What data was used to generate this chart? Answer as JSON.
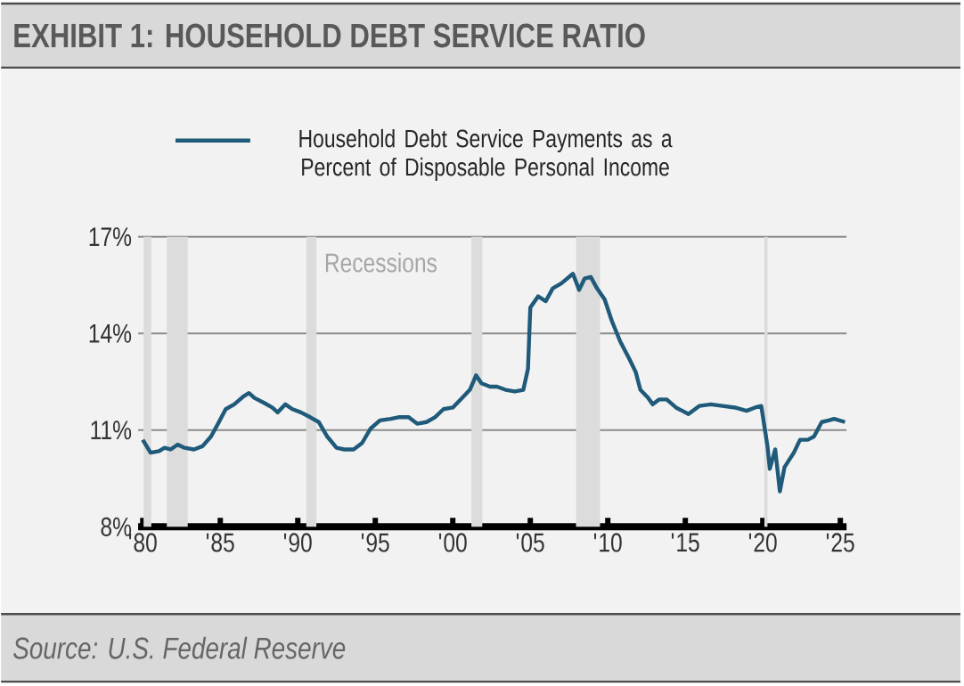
{
  "chart_data": {
    "type": "line",
    "title": "EXHIBIT 1: HOUSEHOLD DEBT SERVICE RATIO",
    "annotations": [
      "Recessions",
      "Source: U.S. Federal Reserve"
    ],
    "series": [
      {
        "name": "Household Debt Service Payments as a Percent of Disposable Personal Income",
        "color": "#1f5a7a",
        "x": [
          1980.0,
          1980.5,
          1981.05,
          1981.4,
          1981.8,
          1982.25,
          1982.7,
          1983.3,
          1983.85,
          1984.4,
          1984.8,
          1985.35,
          1985.9,
          1986.5,
          1986.85,
          1987.2,
          1987.8,
          1988.35,
          1988.7,
          1989.2,
          1989.65,
          1990.2,
          1990.8,
          1991.35,
          1991.9,
          1992.5,
          1993.0,
          1993.6,
          1994.15,
          1994.7,
          1995.3,
          1996.0,
          1996.5,
          1997.15,
          1997.7,
          1998.3,
          1998.85,
          1999.4,
          2000.0,
          2000.5,
          2001.1,
          2001.5,
          2001.85,
          2002.4,
          2002.85,
          2003.4,
          2004.0,
          2004.55,
          2004.85,
          2005.0,
          2005.5,
          2006.0,
          2006.45,
          2007.0,
          2007.75,
          2008.15,
          2008.5,
          2008.9,
          2009.3,
          2009.8,
          2010.25,
          2010.8,
          2011.4,
          2011.8,
          2012.1,
          2012.6,
          2012.9,
          2013.3,
          2013.8,
          2014.4,
          2015.2,
          2015.9,
          2016.65,
          2017.4,
          2018.2,
          2018.95,
          2019.5,
          2019.9,
          2020.3,
          2020.45,
          2020.8,
          2021.1,
          2021.4,
          2022.0,
          2022.4,
          2022.9,
          2023.3,
          2023.8,
          2024.25,
          2024.6,
          2025.3
        ],
        "values": [
          10.7,
          10.3,
          10.35,
          10.45,
          10.4,
          10.55,
          10.45,
          10.4,
          10.5,
          10.8,
          11.15,
          11.65,
          11.8,
          12.05,
          12.15,
          12.0,
          11.85,
          11.7,
          11.55,
          11.8,
          11.65,
          11.55,
          11.4,
          11.25,
          10.8,
          10.45,
          10.4,
          10.4,
          10.6,
          11.05,
          11.3,
          11.35,
          11.4,
          11.4,
          11.2,
          11.25,
          11.4,
          11.65,
          11.7,
          11.95,
          12.25,
          12.7,
          12.45,
          12.35,
          12.35,
          12.25,
          12.2,
          12.25,
          12.9,
          14.8,
          15.15,
          15.0,
          15.4,
          15.55,
          15.85,
          15.35,
          15.7,
          15.75,
          15.4,
          15.05,
          14.4,
          13.75,
          13.2,
          12.8,
          12.25,
          12.0,
          11.8,
          11.95,
          11.95,
          11.7,
          11.5,
          11.75,
          11.8,
          11.75,
          11.7,
          11.6,
          11.7,
          11.75,
          10.5,
          9.8,
          10.4,
          9.1,
          9.85,
          10.3,
          10.7,
          10.7,
          10.8,
          11.25,
          11.3,
          11.35,
          11.25
        ]
      }
    ],
    "bands": [
      {
        "axis": "x",
        "from": 1980.05,
        "to": 1980.55,
        "color": "#dcdcdc"
      },
      {
        "axis": "x",
        "from": 1981.55,
        "to": 1982.9,
        "color": "#dcdcdc"
      },
      {
        "axis": "x",
        "from": 1990.55,
        "to": 1991.2,
        "color": "#dcdcdc"
      },
      {
        "axis": "x",
        "from": 2001.2,
        "to": 2001.9,
        "color": "#dcdcdc"
      },
      {
        "axis": "x",
        "from": 2007.95,
        "to": 2009.5,
        "color": "#dcdcdc"
      },
      {
        "axis": "x",
        "from": 2020.1,
        "to": 2020.3,
        "color": "#dcdcdc"
      }
    ],
    "xlim": [
      1979.7,
      2025.4
    ],
    "xticks": [
      {
        "value": 1980,
        "label": "'80"
      },
      {
        "value": 1985,
        "label": "'85"
      },
      {
        "value": 1990,
        "label": "'90"
      },
      {
        "value": 1995,
        "label": "'95"
      },
      {
        "value": 2000,
        "label": "'00"
      },
      {
        "value": 2005,
        "label": "'05"
      },
      {
        "value": 2010,
        "label": "'10"
      },
      {
        "value": 2015,
        "label": "'15"
      },
      {
        "value": 2020,
        "label": "'20"
      },
      {
        "value": 2025,
        "label": "'25"
      }
    ],
    "ylim": [
      8,
      17
    ],
    "yticks": [
      {
        "value": 8,
        "label": "8%"
      },
      {
        "value": 11,
        "label": "11%"
      },
      {
        "value": 14,
        "label": "14%"
      },
      {
        "value": 17,
        "label": "17%"
      }
    ],
    "grid": "y",
    "legend": "top",
    "marker": "none",
    "line_style": "solid"
  }
}
